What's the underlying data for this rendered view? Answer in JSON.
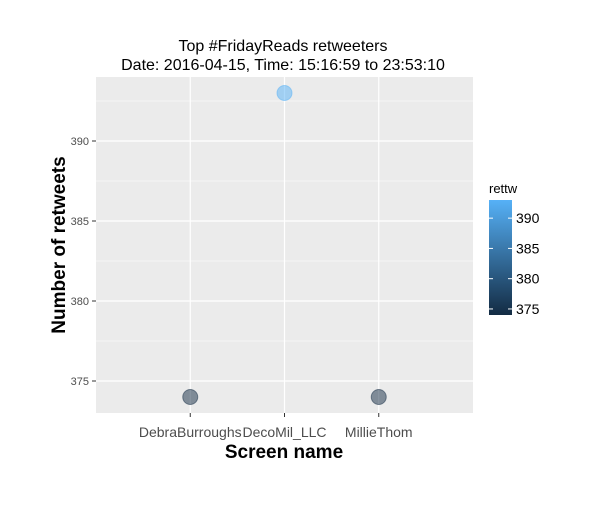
{
  "chart_data": {
    "type": "scatter",
    "title": "Top #FridayReads retweeters",
    "subtitle": "Date: 2016-04-15, Time: 15:16:59 to 23:53:10",
    "xlabel": "Screen name",
    "ylabel": "Number of retweets",
    "categories": [
      "DebraBurroughs",
      "DecoMil_LLC",
      "MillieThom"
    ],
    "values": [
      374,
      393,
      374
    ],
    "ylim": [
      373.0,
      394.0
    ],
    "y_ticks": [
      375,
      380,
      385,
      390
    ],
    "grid": true,
    "legend": {
      "title": "rettw",
      "placement": "right",
      "ticks": [
        375,
        380,
        385,
        390
      ],
      "range": [
        374,
        393
      ],
      "color_low": "#132b43",
      "color_high": "#56b1f7"
    },
    "panel_background": "#ebebeb",
    "gridline_color": "#ffffff",
    "point_alpha": 0.5
  }
}
